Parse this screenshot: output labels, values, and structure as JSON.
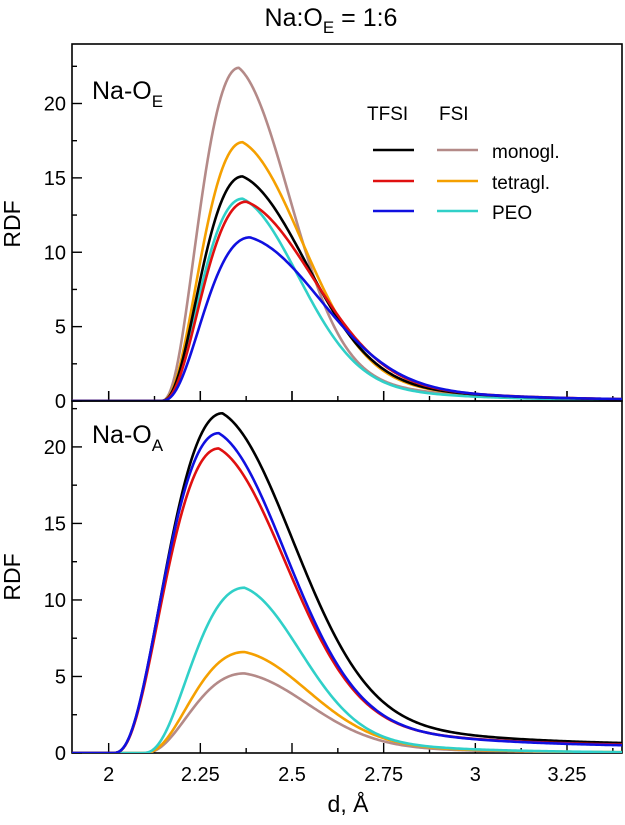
{
  "figure": {
    "title_main": "Na:O",
    "title_sub": "E",
    "title_tail": " = 1:6",
    "xlabel": "d, Å"
  },
  "legend": {
    "headers": [
      "TFSI",
      "FSI"
    ],
    "rows": [
      "monogl.",
      "tetragl.",
      "PEO"
    ]
  },
  "colors": {
    "TFSI monogl.": "#000000",
    "TFSI tetragl.": "#e01010",
    "TFSI PEO": "#1010e0",
    "FSI monogl.": "#b48a88",
    "FSI tetragl.": "#f5a000",
    "FSI PEO": "#30d0c8"
  },
  "chart_data": [
    {
      "type": "line",
      "panel_label_main": "Na-O",
      "panel_label_sub": "E",
      "xlabel": "",
      "ylabel": "RDF",
      "xlim": [
        1.9,
        3.4
      ],
      "ylim": [
        0,
        24
      ],
      "xticks": [
        2,
        2.25,
        2.5,
        2.75,
        3,
        3.25
      ],
      "xtick_labels": [],
      "yticks": [
        0,
        5,
        10,
        15,
        20
      ],
      "legend_position": "top-right",
      "series": [
        {
          "name": "TFSI monogl.",
          "onset": 2.14,
          "peak_x": 2.365,
          "peak_y": 15.1,
          "tail_width": 0.17
        },
        {
          "name": "TFSI tetragl.",
          "onset": 2.14,
          "peak_x": 2.375,
          "peak_y": 13.4,
          "tail_width": 0.18
        },
        {
          "name": "TFSI PEO",
          "onset": 2.14,
          "peak_x": 2.385,
          "peak_y": 11.0,
          "tail_width": 0.19
        },
        {
          "name": "FSI monogl.",
          "onset": 2.14,
          "peak_x": 2.355,
          "peak_y": 22.4,
          "tail_width": 0.135
        },
        {
          "name": "FSI tetragl.",
          "onset": 2.14,
          "peak_x": 2.365,
          "peak_y": 17.4,
          "tail_width": 0.16
        },
        {
          "name": "FSI PEO",
          "onset": 2.14,
          "peak_x": 2.365,
          "peak_y": 13.6,
          "tail_width": 0.15
        }
      ]
    },
    {
      "type": "line",
      "panel_label_main": "Na-O",
      "panel_label_sub": "A",
      "xlabel": "d, Å",
      "ylabel": "RDF",
      "xlim": [
        1.9,
        3.4
      ],
      "ylim": [
        0,
        23
      ],
      "xticks": [
        2,
        2.25,
        2.5,
        2.75,
        3,
        3.25
      ],
      "xtick_labels": [
        "2",
        "2.25",
        "2.5",
        "2.75",
        "3",
        "3.25"
      ],
      "yticks": [
        0,
        5,
        10,
        15,
        20
      ],
      "series": [
        {
          "name": "TFSI monogl.",
          "onset": 2.01,
          "peak_x": 2.31,
          "peak_y": 22.2,
          "tail_width": 0.19,
          "plateau": 0.45
        },
        {
          "name": "TFSI tetragl.",
          "onset": 2.01,
          "peak_x": 2.3,
          "peak_y": 19.9,
          "tail_width": 0.18,
          "plateau": 0.4
        },
        {
          "name": "TFSI PEO",
          "onset": 2.01,
          "peak_x": 2.3,
          "peak_y": 20.9,
          "tail_width": 0.18,
          "plateau": 0.35
        },
        {
          "name": "FSI monogl.",
          "onset": 2.09,
          "peak_x": 2.37,
          "peak_y": 5.2,
          "tail_width": 0.17,
          "plateau": 0.0
        },
        {
          "name": "FSI tetragl.",
          "onset": 2.09,
          "peak_x": 2.37,
          "peak_y": 6.6,
          "tail_width": 0.17,
          "plateau": 0.0
        },
        {
          "name": "FSI PEO",
          "onset": 2.09,
          "peak_x": 2.37,
          "peak_y": 10.8,
          "tail_width": 0.15,
          "plateau": 0.0
        }
      ]
    }
  ]
}
